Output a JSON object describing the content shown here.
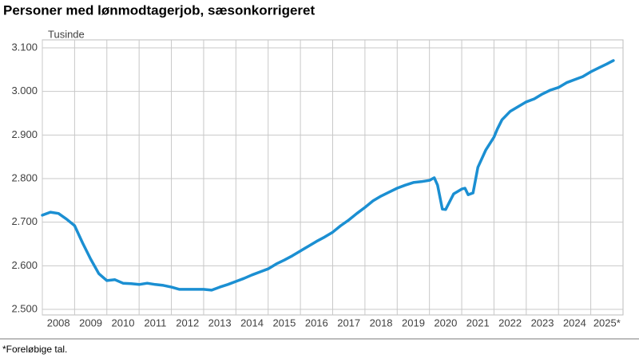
{
  "chart_data": {
    "type": "line",
    "title": "Personer med lønmodtagerjob, sæsonkorrigeret",
    "y_label": "Tusinde",
    "footnote": "*Foreløbige tal.",
    "xlim": [
      2008,
      2026
    ],
    "xticks": [
      {
        "value": 2008,
        "label": "2008"
      },
      {
        "value": 2009,
        "label": "2009"
      },
      {
        "value": 2010,
        "label": "2010"
      },
      {
        "value": 2011,
        "label": "2011"
      },
      {
        "value": 2012,
        "label": "2012"
      },
      {
        "value": 2013,
        "label": "2013"
      },
      {
        "value": 2014,
        "label": "2014"
      },
      {
        "value": 2015,
        "label": "2015"
      },
      {
        "value": 2016,
        "label": "2016"
      },
      {
        "value": 2017,
        "label": "2017"
      },
      {
        "value": 2018,
        "label": "2018"
      },
      {
        "value": 2019,
        "label": "2019"
      },
      {
        "value": 2020,
        "label": "2020"
      },
      {
        "value": 2021,
        "label": "2021"
      },
      {
        "value": 2022,
        "label": "2022"
      },
      {
        "value": 2023,
        "label": "2023"
      },
      {
        "value": 2024,
        "label": "2024"
      },
      {
        "value": 2025,
        "label": "2025*"
      }
    ],
    "ylim": [
      2500,
      3100
    ],
    "yticks": [
      {
        "value": 2500,
        "label": "2.500"
      },
      {
        "value": 2600,
        "label": "2.600"
      },
      {
        "value": 2700,
        "label": "2.700"
      },
      {
        "value": 2800,
        "label": "2.800"
      },
      {
        "value": 2900,
        "label": "2.900"
      },
      {
        "value": 3000,
        "label": "3.000"
      },
      {
        "value": 3100,
        "label": "3.100"
      }
    ],
    "grid": true,
    "color": "#1b8fd2",
    "x": [
      2008.0,
      2008.25,
      2008.5,
      2008.75,
      2009.0,
      2009.25,
      2009.5,
      2009.75,
      2010.0,
      2010.25,
      2010.5,
      2010.75,
      2011.0,
      2011.25,
      2011.5,
      2011.75,
      2012.0,
      2012.25,
      2012.5,
      2012.75,
      2013.0,
      2013.25,
      2013.5,
      2013.75,
      2014.0,
      2014.25,
      2014.5,
      2014.75,
      2015.0,
      2015.25,
      2015.5,
      2015.75,
      2016.0,
      2016.25,
      2016.5,
      2016.75,
      2017.0,
      2017.25,
      2017.5,
      2017.75,
      2018.0,
      2018.25,
      2018.5,
      2018.75,
      2019.0,
      2019.25,
      2019.5,
      2019.75,
      2020.0,
      2020.15,
      2020.25,
      2020.4,
      2020.5,
      2020.75,
      2021.0,
      2021.1,
      2021.2,
      2021.35,
      2021.5,
      2021.75,
      2022.0,
      2022.1,
      2022.25,
      2022.5,
      2022.75,
      2023.0,
      2023.25,
      2023.5,
      2023.75,
      2024.0,
      2024.25,
      2024.5,
      2024.75,
      2025.0,
      2025.25,
      2025.5,
      2025.7
    ],
    "values": [
      2716,
      2723,
      2720,
      2707,
      2692,
      2652,
      2615,
      2582,
      2566,
      2568,
      2560,
      2559,
      2557,
      2560,
      2557,
      2555,
      2551,
      2546,
      2546,
      2546,
      2546,
      2544,
      2551,
      2557,
      2564,
      2571,
      2579,
      2586,
      2593,
      2604,
      2613,
      2623,
      2634,
      2645,
      2656,
      2666,
      2677,
      2692,
      2705,
      2720,
      2734,
      2749,
      2760,
      2769,
      2778,
      2785,
      2791,
      2793,
      2796,
      2802,
      2785,
      2730,
      2729,
      2765,
      2776,
      2778,
      2763,
      2767,
      2826,
      2866,
      2895,
      2913,
      2935,
      2954,
      2965,
      2976,
      2983,
      2994,
      3003,
      3009,
      3020,
      3027,
      3034,
      3045,
      3054,
      3063,
      3071
    ]
  }
}
